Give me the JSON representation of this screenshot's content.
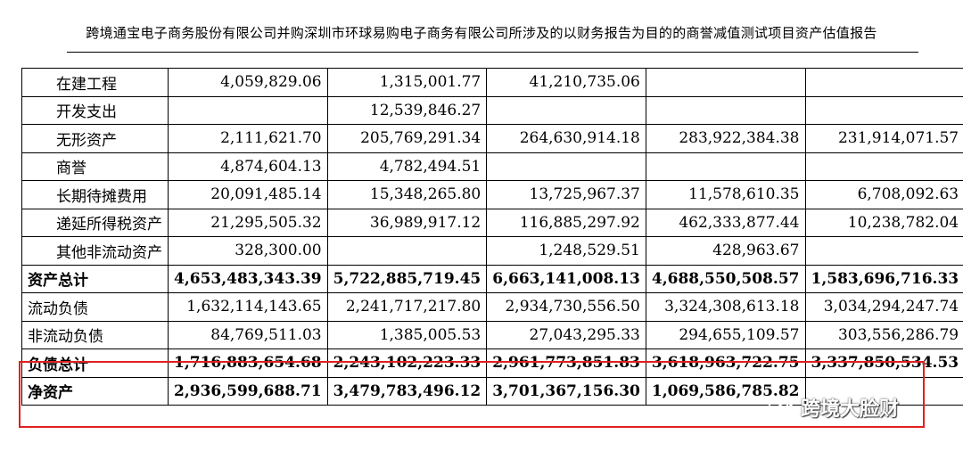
{
  "header": {
    "title": "跨境通宝电子商务股份有限公司并购深圳市环球易购电子商务有限公司所涉及的以财务报告为目的的商誉减值测试项目资产估值报告"
  },
  "table": {
    "rows": [
      {
        "label": "在建工程",
        "indent": true,
        "bold": false,
        "values": [
          "4,059,829.06",
          "1,315,001.77",
          "41,210,735.06",
          "",
          ""
        ]
      },
      {
        "label": "开发支出",
        "indent": true,
        "bold": false,
        "values": [
          "",
          "12,539,846.27",
          "",
          "",
          ""
        ]
      },
      {
        "label": "无形资产",
        "indent": true,
        "bold": false,
        "values": [
          "2,111,621.70",
          "205,769,291.34",
          "264,630,914.18",
          "283,922,384.38",
          "231,914,071.57"
        ]
      },
      {
        "label": "商誉",
        "indent": true,
        "bold": false,
        "values": [
          "4,874,604.13",
          "4,782,494.51",
          "",
          "",
          ""
        ]
      },
      {
        "label": "长期待摊费用",
        "indent": true,
        "bold": false,
        "values": [
          "20,091,485.14",
          "15,348,265.80",
          "13,725,967.37",
          "11,578,610.35",
          "6,708,092.63"
        ]
      },
      {
        "label": "递延所得税资产",
        "indent": true,
        "bold": false,
        "values": [
          "21,295,505.32",
          "36,989,917.12",
          "116,885,297.92",
          "462,333,877.44",
          "10,238,782.04"
        ]
      },
      {
        "label": "其他非流动资产",
        "indent": true,
        "bold": false,
        "values": [
          "328,300.00",
          "",
          "1,248,529.51",
          "428,963.67",
          ""
        ]
      },
      {
        "label": "资产总计",
        "indent": false,
        "bold": true,
        "values": [
          "4,653,483,343.39",
          "5,722,885,719.45",
          "6,663,141,008.13",
          "4,688,550,508.57",
          "1,583,696,716.33"
        ]
      },
      {
        "label": "流动负债",
        "indent": false,
        "bold": false,
        "values": [
          "1,632,114,143.65",
          "2,241,717,217.80",
          "2,934,730,556.50",
          "3,324,308,613.18",
          "3,034,294,247.74"
        ]
      },
      {
        "label": "非流动负债",
        "indent": false,
        "bold": false,
        "values": [
          "84,769,511.03",
          "1,385,005.53",
          "27,043,295.33",
          "294,655,109.57",
          "303,556,286.79"
        ]
      },
      {
        "label": "负债总计",
        "indent": false,
        "bold": true,
        "values": [
          "1,716,883,654.68",
          "2,243,102,223.33",
          "2,961,773,851.83",
          "3,618,963,722.75",
          "3,337,850,534.53"
        ]
      },
      {
        "label": "净资产",
        "indent": false,
        "bold": true,
        "values": [
          "2,936,599,688.71",
          "3,479,783,496.12",
          "3,701,367,156.30",
          "1,069,586,785.82",
          ""
        ]
      }
    ]
  },
  "watermark": {
    "text": "跨境大脸财",
    "icon": "wechat-icon"
  }
}
